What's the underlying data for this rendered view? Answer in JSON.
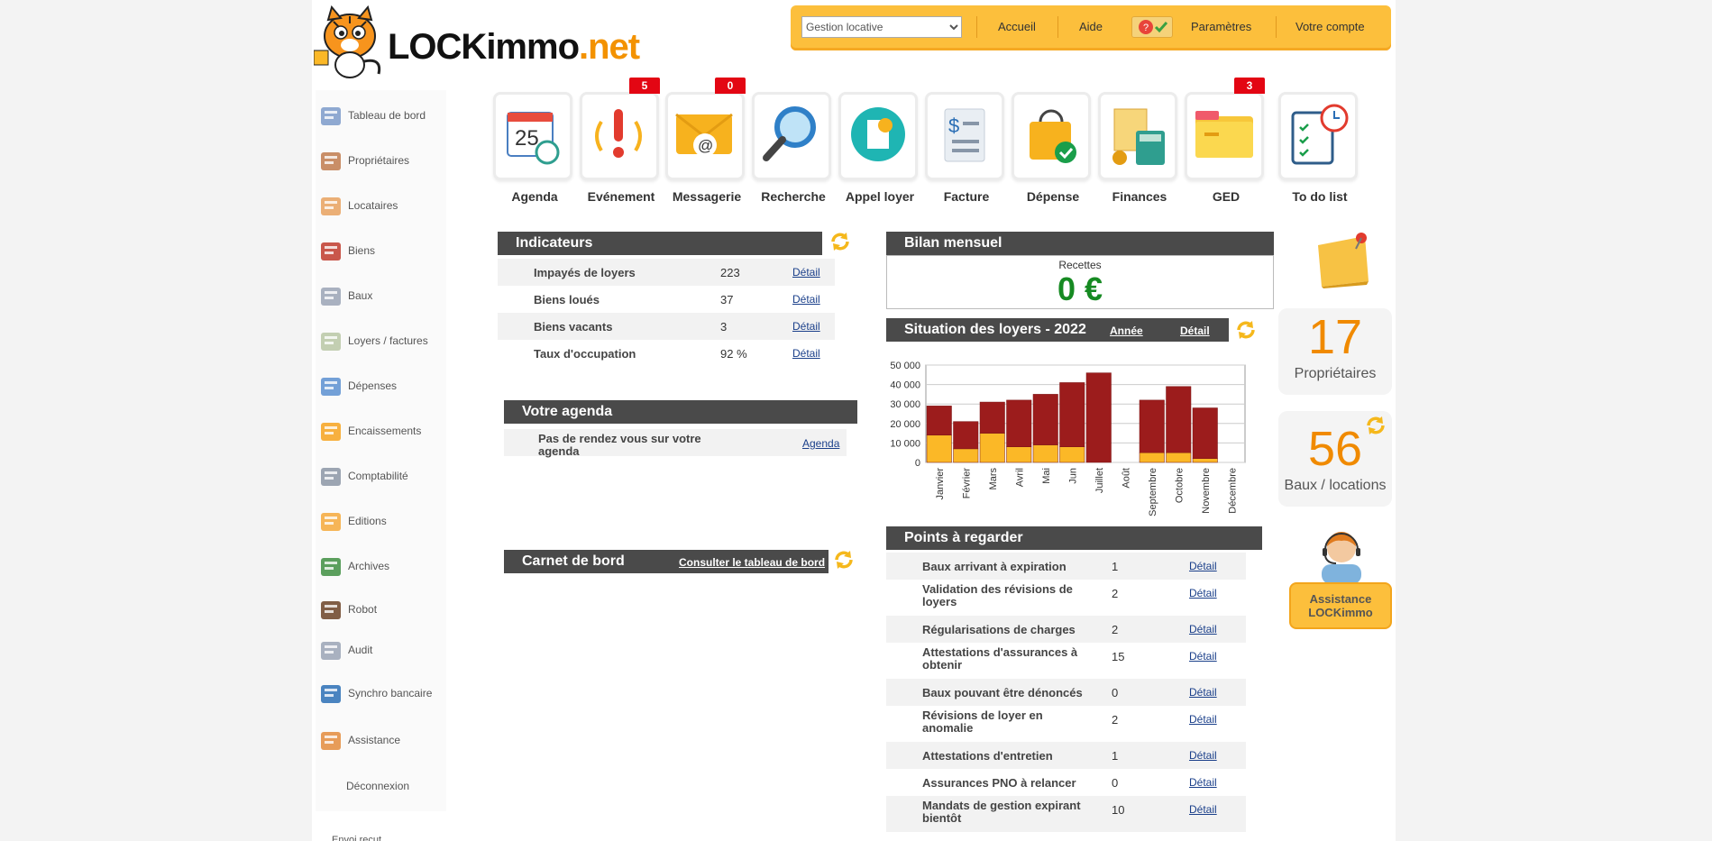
{
  "logo": {
    "text_dark": "LOCKimmo",
    "text_accent": ".net"
  },
  "topbar": {
    "select_value": "Gestion locative",
    "links": [
      "Accueil",
      "Aide",
      "Paramètres",
      "Votre compte"
    ]
  },
  "sidebar": {
    "items": [
      {
        "label": "Tableau de bord",
        "icon": "dashboard-icon"
      },
      {
        "label": "Propriétaires",
        "icon": "owners-icon"
      },
      {
        "label": "Locataires",
        "icon": "tenants-icon"
      },
      {
        "label": "Biens",
        "icon": "house-icon"
      },
      {
        "label": "Baux",
        "icon": "lease-icon"
      },
      {
        "label": "Loyers / factures",
        "icon": "invoice-icon"
      },
      {
        "label": "Dépenses",
        "icon": "expenses-icon"
      },
      {
        "label": "Encaissements",
        "icon": "payment-icon"
      },
      {
        "label": "Comptabilité",
        "icon": "calculator-icon"
      },
      {
        "label": "Editions",
        "icon": "chart-icon"
      },
      {
        "label": "Archives",
        "icon": "archives-icon"
      },
      {
        "label": "Robot",
        "icon": "robot-icon"
      },
      {
        "label": "Audit",
        "icon": "audit-icon"
      },
      {
        "label": "Synchro bancaire",
        "icon": "bank-icon"
      },
      {
        "label": "Assistance",
        "icon": "support-icon"
      },
      {
        "label": "Déconnexion",
        "icon": ""
      }
    ],
    "footer_partial": "Envoi reçut"
  },
  "modules": [
    {
      "label": "Agenda",
      "icon": "calendar-icon",
      "badge": ""
    },
    {
      "label": "Evénement",
      "icon": "alert-icon",
      "badge": "5"
    },
    {
      "label": "Messagerie",
      "icon": "mail-icon",
      "badge": "0"
    },
    {
      "label": "Recherche",
      "icon": "search-icon",
      "badge": ""
    },
    {
      "label": "Appel loyer",
      "icon": "rent-call-icon",
      "badge": ""
    },
    {
      "label": "Facture",
      "icon": "bill-icon",
      "badge": ""
    },
    {
      "label": "Dépense",
      "icon": "bag-icon",
      "badge": ""
    },
    {
      "label": "Finances",
      "icon": "finance-icon",
      "badge": ""
    },
    {
      "label": "GED",
      "icon": "folder-icon",
      "badge": "3"
    },
    {
      "label": "To do list",
      "icon": "todo-icon",
      "badge": ""
    }
  ],
  "indicateurs": {
    "title": "Indicateurs",
    "rows": [
      {
        "label": "Impayés de loyers",
        "value": "223",
        "link": "Détail"
      },
      {
        "label": "Biens loués",
        "value": "37",
        "link": "Détail"
      },
      {
        "label": "Biens vacants",
        "value": "3",
        "link": "Détail"
      },
      {
        "label": "Taux d'occupation",
        "value": "92 %",
        "link": "Détail"
      }
    ]
  },
  "agenda": {
    "title": "Votre agenda",
    "empty": "Pas de rendez vous sur votre agenda",
    "link": "Agenda"
  },
  "carnet": {
    "title": "Carnet de bord",
    "link": "Consulter le tableau de bord"
  },
  "bilan": {
    "title": "Bilan mensuel",
    "label": "Recettes",
    "value": "0 €"
  },
  "situation": {
    "title": "Situation des loyers - 2022",
    "link_year": "Année",
    "link_detail": "Détail"
  },
  "chart_data": {
    "type": "bar",
    "stacked": true,
    "categories": [
      "Janvier",
      "Février",
      "Mars",
      "Avril",
      "Mai",
      "Jun",
      "Juillet",
      "Août",
      "Septembre",
      "Octobre",
      "Novembre",
      "Décembre"
    ],
    "series": [
      {
        "values": [
          14000,
          7000,
          15000,
          8000,
          9000,
          8000,
          0,
          0,
          5000,
          5000,
          2000,
          0
        ],
        "color": "#fbb827"
      },
      {
        "values": [
          15000,
          14000,
          16000,
          24000,
          26000,
          33000,
          46000,
          0,
          27000,
          34000,
          26000,
          0
        ],
        "color": "#9c1c1c"
      }
    ],
    "ylim": [
      0,
      50000
    ],
    "yticks": [
      "50 000",
      "40 000",
      "30 000",
      "20 000",
      "10 000",
      "0"
    ],
    "grid": true
  },
  "points": {
    "title": "Points à regarder",
    "rows": [
      {
        "label": "Baux arrivant à expiration",
        "value": "1",
        "link": "Détail"
      },
      {
        "label": "Validation des révisions de loyers",
        "value": "2",
        "link": "Détail"
      },
      {
        "label": "Régularisations de charges",
        "value": "2",
        "link": "Détail"
      },
      {
        "label": "Attestations d'assurances à obtenir",
        "value": "15",
        "link": "Détail"
      },
      {
        "label": "Baux pouvant être dénoncés",
        "value": "0",
        "link": "Détail"
      },
      {
        "label": "Révisions de loyer en anomalie",
        "value": "2",
        "link": "Détail"
      },
      {
        "label": "Attestations d'entretien",
        "value": "1",
        "link": "Détail"
      },
      {
        "label": "Assurances PNO à relancer",
        "value": "0",
        "link": "Détail"
      },
      {
        "label": "Mandats de gestion expirant bientôt",
        "value": "10",
        "link": "Détail"
      }
    ]
  },
  "stats": {
    "owners": {
      "value": "17",
      "label": "Propriétaires"
    },
    "leases": {
      "value": "56",
      "label": "Baux / locations"
    }
  },
  "assistance": {
    "label_line1": "Assistance",
    "label_line2": "LOCKimmo"
  }
}
